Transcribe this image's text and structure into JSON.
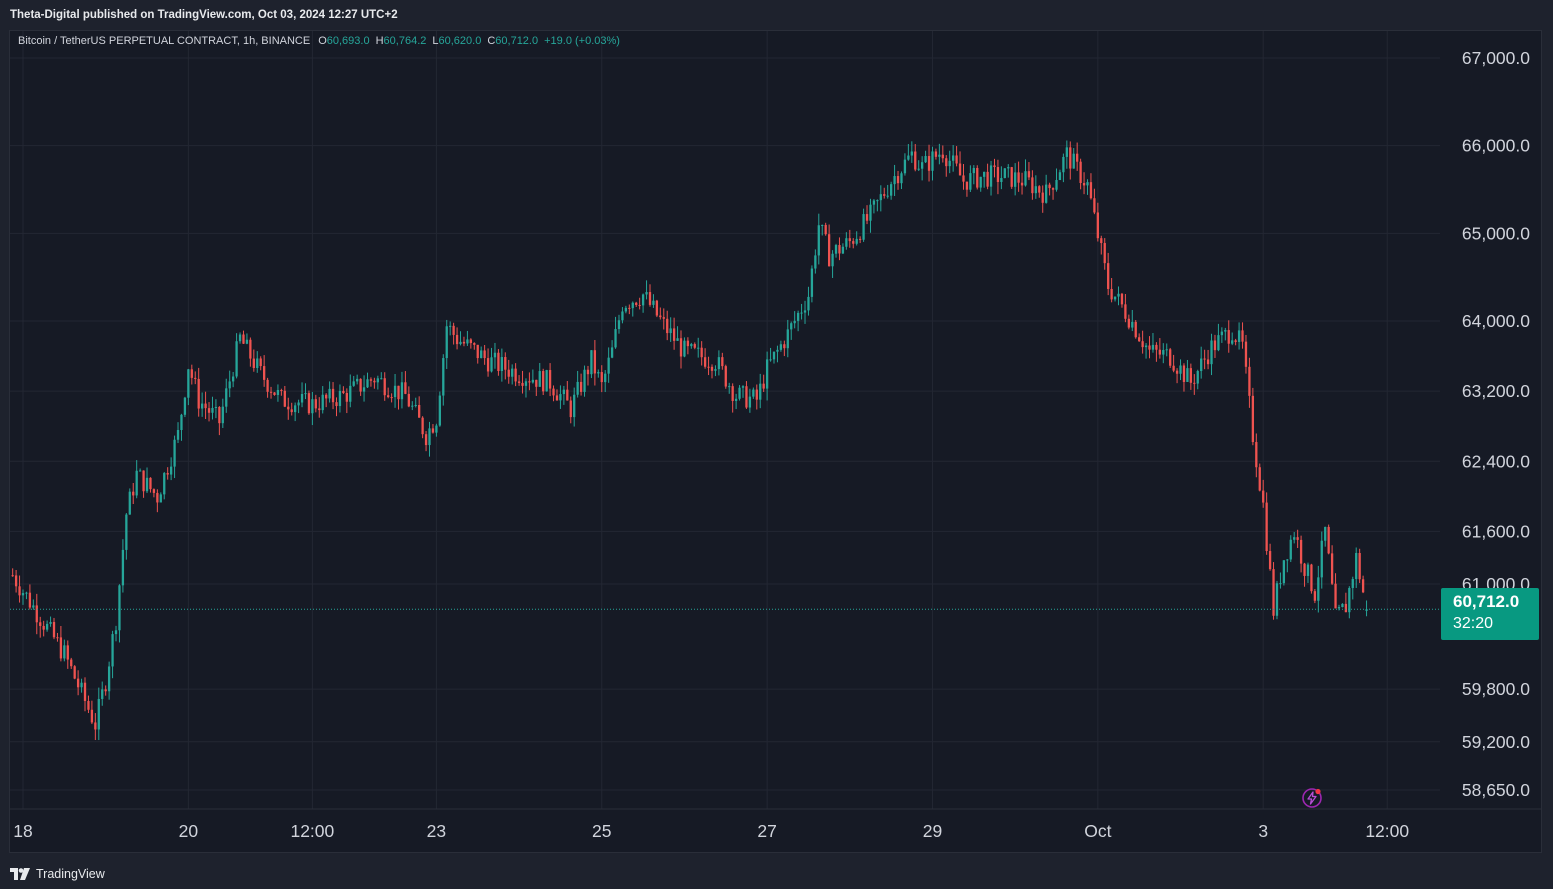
{
  "header": {
    "publish_line": "Theta-Digital published on TradingView.com, Oct 03, 2024 12:27 UTC+2"
  },
  "legend": {
    "symbol": "Bitcoin / TetherUS PERPETUAL CONTRACT, 1h, BINANCE",
    "open_label": "O",
    "open": "60,693.0",
    "high_label": "H",
    "high": "60,764.2",
    "low_label": "L",
    "low": "60,620.0",
    "close_label": "C",
    "close": "60,712.0",
    "change": "+19.0 (+0.03%)"
  },
  "price_tag": {
    "price": "60,712.0",
    "countdown": "32:20"
  },
  "footer": {
    "brand": "TradingView"
  },
  "icons": {
    "alert": "lightning-alert-icon",
    "logo": "tradingview-logo-icon"
  },
  "colors": {
    "background": "#161a25",
    "grid": "#232733",
    "up": "#26a69a",
    "down": "#ef5350",
    "price_line": "#26a69a",
    "tag": "#089981",
    "axis_text": "#d1d4dc"
  },
  "chart_data": {
    "type": "candlestick",
    "timeframe": "1h",
    "y_axis": {
      "labels": [
        "67,000.0",
        "66,000.0",
        "65,000.0",
        "64,000.0",
        "63,200.0",
        "62,400.0",
        "61,600.0",
        "61,000.0",
        "59,800.0",
        "59,200.0",
        "58,650.0"
      ],
      "values": [
        67000,
        66000,
        65000,
        64000,
        63200,
        62400,
        61600,
        61000,
        59800,
        59200,
        58650
      ]
    },
    "x_axis": {
      "labels": [
        "18",
        "20",
        "12:00",
        "23",
        "25",
        "27",
        "29",
        "Oct",
        "3",
        "12:00"
      ],
      "times": [
        "Sep 18 00:00",
        "Sep 20 00:00",
        "Sep 21 12:00",
        "Sep 23 00:00",
        "Sep 25 00:00",
        "Sep 27 00:00",
        "Sep 29 00:00",
        "Oct 1 00:00",
        "Oct 3 00:00",
        "Oct 4 12:00"
      ]
    },
    "last_price": 60712.0,
    "series": [
      {
        "time": "Sep 17 21:00",
        "close": 61100
      },
      {
        "time": "Sep 18 12:00",
        "close": 60200
      },
      {
        "time": "Sep 18 21:00",
        "close": 59400
      },
      {
        "time": "Sep 19 00:00",
        "close": 59900
      },
      {
        "time": "Sep 19 03:00",
        "close": 60600
      },
      {
        "time": "Sep 19 06:00",
        "close": 61800
      },
      {
        "time": "Sep 19 09:00",
        "close": 62250
      },
      {
        "time": "Sep 19 15:00",
        "close": 62000
      },
      {
        "time": "Sep 19 21:00",
        "close": 62700
      },
      {
        "time": "Sep 20 00:00",
        "close": 63500
      },
      {
        "time": "Sep 20 03:00",
        "close": 63100
      },
      {
        "time": "Sep 20 09:00",
        "close": 62850
      },
      {
        "time": "Sep 20 15:00",
        "close": 63800
      },
      {
        "time": "Sep 20 21:00",
        "close": 63400
      },
      {
        "time": "Sep 21 03:00",
        "close": 63100
      },
      {
        "time": "Sep 21 12:00",
        "close": 63050
      },
      {
        "time": "Sep 21 21:00",
        "close": 63150
      },
      {
        "time": "Sep 22 06:00",
        "close": 63350
      },
      {
        "time": "Sep 22 15:00",
        "close": 63150
      },
      {
        "time": "Sep 22 21:00",
        "close": 62700
      },
      {
        "time": "Sep 23 00:00",
        "close": 62900
      },
      {
        "time": "Sep 23 03:00",
        "close": 63950
      },
      {
        "time": "Sep 23 06:00",
        "close": 63800
      },
      {
        "time": "Sep 23 15:00",
        "close": 63550
      },
      {
        "time": "Sep 24 00:00",
        "close": 63400
      },
      {
        "time": "Sep 24 09:00",
        "close": 63300
      },
      {
        "time": "Sep 24 15:00",
        "close": 63000
      },
      {
        "time": "Sep 24 21:00",
        "close": 63550
      },
      {
        "time": "Sep 25 00:00",
        "close": 63250
      },
      {
        "time": "Sep 25 03:00",
        "close": 63650
      },
      {
        "time": "Sep 25 06:00",
        "close": 64200
      },
      {
        "time": "Sep 25 12:00",
        "close": 64300
      },
      {
        "time": "Sep 25 18:00",
        "close": 63950
      },
      {
        "time": "Sep 26 00:00",
        "close": 63650
      },
      {
        "time": "Sep 26 09:00",
        "close": 63550
      },
      {
        "time": "Sep 26 15:00",
        "close": 63150
      },
      {
        "time": "Sep 26 21:00",
        "close": 63100
      },
      {
        "time": "Sep 27 00:00",
        "close": 63450
      },
      {
        "time": "Sep 27 06:00",
        "close": 63850
      },
      {
        "time": "Sep 27 12:00",
        "close": 64300
      },
      {
        "time": "Sep 27 15:00",
        "close": 65100
      },
      {
        "time": "Sep 27 18:00",
        "close": 64750
      },
      {
        "time": "Sep 28 00:00",
        "close": 64900
      },
      {
        "time": "Sep 28 06:00",
        "close": 65200
      },
      {
        "time": "Sep 28 12:00",
        "close": 65600
      },
      {
        "time": "Sep 28 18:00",
        "close": 65900
      },
      {
        "time": "Sep 28 21:00",
        "close": 65750
      },
      {
        "time": "Sep 29 03:00",
        "close": 65950
      },
      {
        "time": "Sep 29 09:00",
        "close": 65600
      },
      {
        "time": "Sep 29 15:00",
        "close": 65650
      },
      {
        "time": "Sep 29 21:00",
        "close": 65650
      },
      {
        "time": "Sep 30 03:00",
        "close": 65600
      },
      {
        "time": "Sep 30 09:00",
        "close": 65450
      },
      {
        "time": "Sep 30 15:00",
        "close": 65900
      },
      {
        "time": "Sep 30 21:00",
        "close": 65550
      },
      {
        "time": "Oct 1 03:00",
        "close": 64400
      },
      {
        "time": "Oct 1 09:00",
        "close": 64050
      },
      {
        "time": "Oct 1 15:00",
        "close": 63650
      },
      {
        "time": "Oct 1 21:00",
        "close": 63600
      },
      {
        "time": "Oct 2 03:00",
        "close": 63300
      },
      {
        "time": "Oct 2 09:00",
        "close": 63700
      },
      {
        "time": "Oct 2 15:00",
        "close": 63900
      },
      {
        "time": "Oct 2 18:00",
        "close": 63700
      },
      {
        "time": "Oct 2 21:00",
        "close": 62700
      },
      {
        "time": "Oct 3 00:00",
        "close": 61900
      },
      {
        "time": "Oct 3 03:00",
        "close": 60700
      },
      {
        "time": "Oct 3 06:00",
        "close": 61300
      },
      {
        "time": "Oct 3 09:00",
        "close": 61600
      },
      {
        "time": "Oct 3 12:00",
        "close": 61200
      },
      {
        "time": "Oct 3 15:00",
        "close": 60900
      },
      {
        "time": "Oct 3 18:00",
        "close": 61600
      },
      {
        "time": "Oct 3 21:00",
        "close": 60600
      },
      {
        "time": "Oct 4 00:00",
        "close": 60750
      },
      {
        "time": "Oct 4 03:00",
        "close": 61300
      },
      {
        "time": "Oct 4 06:00",
        "close": 60712
      }
    ],
    "grid": true,
    "legend": "top-left"
  }
}
